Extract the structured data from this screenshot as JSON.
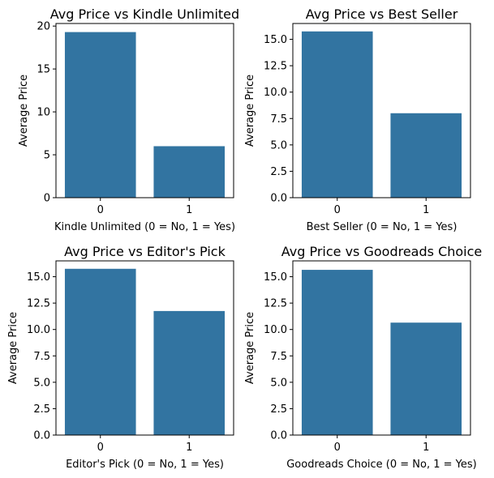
{
  "chart_data": [
    {
      "type": "bar",
      "title": "Avg Price vs Kindle Unlimited",
      "xlabel": "Kindle Unlimited (0 = No, 1 = Yes)",
      "ylabel": "Average Price",
      "categories": [
        "0",
        "1"
      ],
      "values": [
        19.3,
        6.0
      ],
      "ylim": [
        0,
        20.3
      ],
      "yticks": [
        0,
        5,
        10,
        15,
        20
      ],
      "ytick_labels": [
        "0",
        "5",
        "10",
        "15",
        "20"
      ],
      "color": "#3274a1",
      "grid": false
    },
    {
      "type": "bar",
      "title": "Avg Price vs Best Seller",
      "xlabel": "Best Seller (0 = No, 1 = Yes)",
      "ylabel": "Average Price",
      "categories": [
        "0",
        "1"
      ],
      "values": [
        15.75,
        8.0
      ],
      "ylim": [
        0,
        16.5
      ],
      "yticks": [
        0,
        2.5,
        5,
        7.5,
        10,
        12.5,
        15
      ],
      "ytick_labels": [
        "0.0",
        "2.5",
        "5.0",
        "7.5",
        "10.0",
        "12.5",
        "15.0"
      ],
      "color": "#3274a1",
      "grid": false
    },
    {
      "type": "bar",
      "title": "Avg Price vs Editor's Pick",
      "xlabel": "Editor's Pick (0 = No, 1 = Yes)",
      "ylabel": "Average Price",
      "categories": [
        "0",
        "1"
      ],
      "values": [
        15.75,
        11.75
      ],
      "ylim": [
        0,
        16.5
      ],
      "yticks": [
        0,
        2.5,
        5,
        7.5,
        10,
        12.5,
        15
      ],
      "ytick_labels": [
        "0.0",
        "2.5",
        "5.0",
        "7.5",
        "10.0",
        "12.5",
        "15.0"
      ],
      "color": "#3274a1",
      "grid": false
    },
    {
      "type": "bar",
      "title": "Avg Price vs Goodreads Choice",
      "xlabel": "Goodreads Choice (0 = No, 1 = Yes)",
      "ylabel": "Average Price",
      "categories": [
        "0",
        "1"
      ],
      "values": [
        15.65,
        10.65
      ],
      "ylim": [
        0,
        16.5
      ],
      "yticks": [
        0,
        2.5,
        5,
        7.5,
        10,
        12.5,
        15
      ],
      "ytick_labels": [
        "0.0",
        "2.5",
        "5.0",
        "7.5",
        "10.0",
        "12.5",
        "15.0"
      ],
      "color": "#3274a1",
      "grid": false
    }
  ]
}
